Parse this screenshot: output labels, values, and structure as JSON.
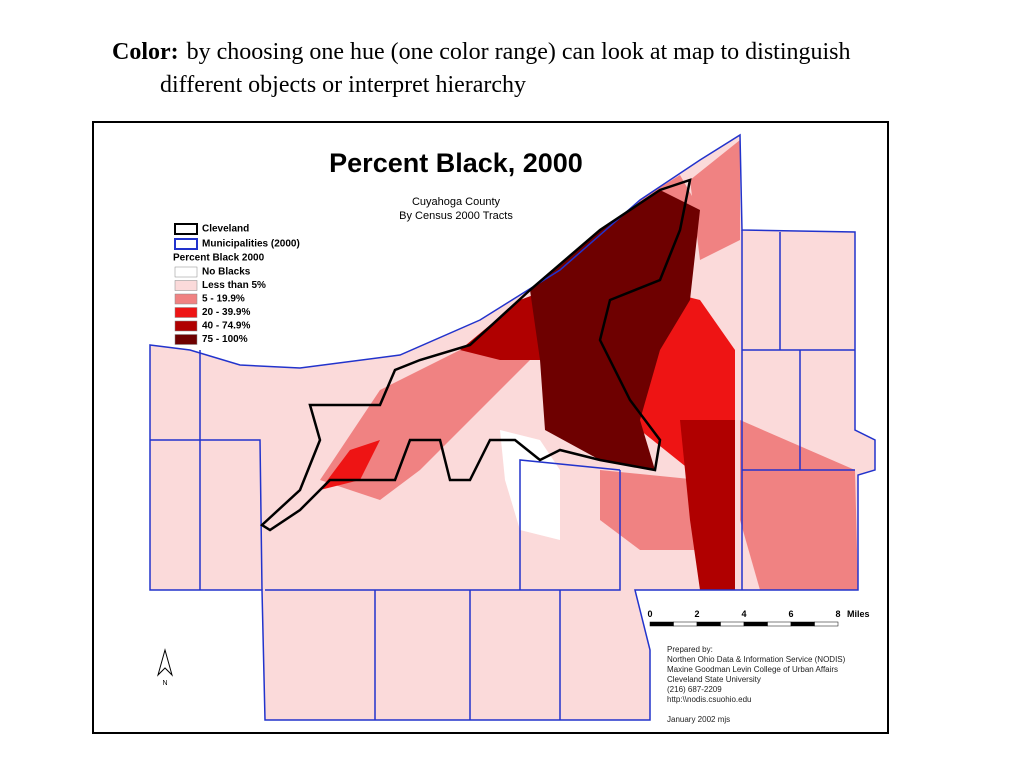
{
  "slide": {
    "lead": "Color:",
    "text": "by choosing one hue (one color range) can look at map to distinguish different objects or interpret hierarchy"
  },
  "map": {
    "title": "Percent Black, 2000",
    "subtitle": [
      "Cuyahoga County",
      "By Census 2000 Tracts"
    ],
    "legend": {
      "boundaries": [
        {
          "label": "Cleveland",
          "color": "#000000"
        },
        {
          "label": "Municipalities (2000)",
          "color": "#2233cc"
        }
      ],
      "heading": "Percent Black 2000",
      "classes": [
        {
          "label": "No Blacks",
          "color": "#ffffff"
        },
        {
          "label": "Less than 5%",
          "color": "#fbdada"
        },
        {
          "label": "5 - 19.9%",
          "color": "#f08282"
        },
        {
          "label": "20 - 39.9%",
          "color": "#ee1414"
        },
        {
          "label": "40 - 74.9%",
          "color": "#b00000"
        },
        {
          "label": "75 - 100%",
          "color": "#6e0000"
        }
      ]
    },
    "scale": {
      "ticks": [
        0,
        2,
        4,
        6,
        8
      ],
      "unit": "Miles"
    },
    "north": "N",
    "credits": [
      "Prepared by:",
      "Northen Ohio Data & Information Service (NODIS)",
      "Maxine Goodman Levin College of Urban Affairs",
      "Cleveland State University",
      "(216) 687-2209",
      "http:\\\\nodis.csuohio.edu",
      "January 2002 mjs"
    ]
  }
}
